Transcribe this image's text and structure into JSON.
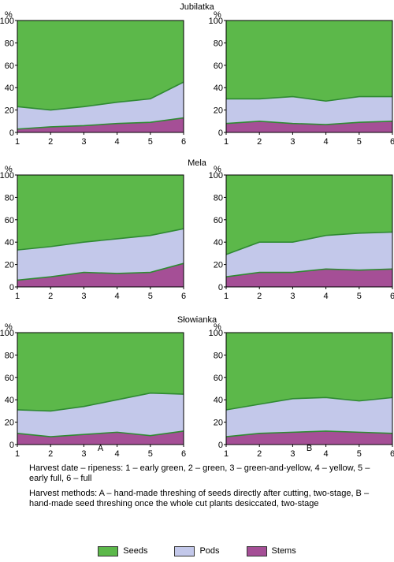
{
  "colors": {
    "seeds": "#5cb84a",
    "pods": "#c3c8ea",
    "stems": "#a54f96",
    "line": "#2f8a32"
  },
  "icons": [
    "legend-swatch"
  ],
  "chart_data": [
    {
      "type": "area",
      "panel": "Jubilatka-A",
      "group_title": "Jubilatka",
      "column_label": "",
      "y_unit": "%",
      "x": [
        1,
        2,
        3,
        4,
        5,
        6
      ],
      "ylim": [
        0,
        100
      ],
      "yticks": [
        0,
        20,
        40,
        60,
        80,
        100
      ],
      "stacked": true,
      "series": [
        {
          "name": "Stems",
          "values": [
            3,
            5,
            6,
            8,
            9,
            13
          ]
        },
        {
          "name": "Pods",
          "values": [
            20,
            15,
            17,
            19,
            21,
            32
          ]
        },
        {
          "name": "Seeds",
          "values": [
            77,
            80,
            77,
            73,
            70,
            55
          ]
        }
      ]
    },
    {
      "type": "area",
      "panel": "Jubilatka-B",
      "group_title": "",
      "column_label": "",
      "y_unit": "%",
      "x": [
        1,
        2,
        3,
        4,
        5,
        6
      ],
      "ylim": [
        0,
        100
      ],
      "yticks": [
        0,
        20,
        40,
        60,
        80,
        100
      ],
      "stacked": true,
      "series": [
        {
          "name": "Stems",
          "values": [
            8,
            10,
            8,
            7,
            9,
            10
          ]
        },
        {
          "name": "Pods",
          "values": [
            22,
            20,
            24,
            21,
            23,
            22
          ]
        },
        {
          "name": "Seeds",
          "values": [
            70,
            70,
            68,
            72,
            68,
            68
          ]
        }
      ]
    },
    {
      "type": "area",
      "panel": "Mela-A",
      "group_title": "Mela",
      "column_label": "",
      "y_unit": "%",
      "x": [
        1,
        2,
        3,
        4,
        5,
        6
      ],
      "ylim": [
        0,
        100
      ],
      "yticks": [
        0,
        20,
        40,
        60,
        80,
        100
      ],
      "stacked": true,
      "series": [
        {
          "name": "Stems",
          "values": [
            6,
            9,
            13,
            12,
            13,
            21
          ]
        },
        {
          "name": "Pods",
          "values": [
            27,
            27,
            27,
            31,
            33,
            31
          ]
        },
        {
          "name": "Seeds",
          "values": [
            67,
            64,
            60,
            57,
            54,
            48
          ]
        }
      ]
    },
    {
      "type": "area",
      "panel": "Mela-B",
      "group_title": "",
      "column_label": "",
      "y_unit": "%",
      "x": [
        1,
        2,
        3,
        4,
        5,
        6
      ],
      "ylim": [
        0,
        100
      ],
      "yticks": [
        0,
        20,
        40,
        60,
        80,
        100
      ],
      "stacked": true,
      "series": [
        {
          "name": "Stems",
          "values": [
            9,
            13,
            13,
            16,
            15,
            16
          ]
        },
        {
          "name": "Pods",
          "values": [
            20,
            27,
            27,
            30,
            33,
            33
          ]
        },
        {
          "name": "Seeds",
          "values": [
            71,
            60,
            60,
            54,
            52,
            51
          ]
        }
      ]
    },
    {
      "type": "area",
      "panel": "Slowianka-A",
      "group_title": "Słowianka",
      "column_label": "A",
      "y_unit": "%",
      "x": [
        1,
        2,
        3,
        4,
        5,
        6
      ],
      "ylim": [
        0,
        100
      ],
      "yticks": [
        0,
        20,
        40,
        60,
        80,
        100
      ],
      "stacked": true,
      "series": [
        {
          "name": "Stems",
          "values": [
            10,
            7,
            9,
            11,
            8,
            12
          ]
        },
        {
          "name": "Pods",
          "values": [
            21,
            23,
            25,
            29,
            38,
            33
          ]
        },
        {
          "name": "Seeds",
          "values": [
            69,
            70,
            66,
            60,
            54,
            55
          ]
        }
      ]
    },
    {
      "type": "area",
      "panel": "Slowianka-B",
      "group_title": "",
      "column_label": "B",
      "y_unit": "%",
      "x": [
        1,
        2,
        3,
        4,
        5,
        6
      ],
      "ylim": [
        0,
        100
      ],
      "yticks": [
        0,
        20,
        40,
        60,
        80,
        100
      ],
      "stacked": true,
      "series": [
        {
          "name": "Stems",
          "values": [
            7,
            10,
            11,
            12,
            11,
            10
          ]
        },
        {
          "name": "Pods",
          "values": [
            24,
            26,
            30,
            30,
            28,
            32
          ]
        },
        {
          "name": "Seeds",
          "values": [
            69,
            64,
            59,
            58,
            61,
            58
          ]
        }
      ]
    }
  ],
  "notes": [
    "Harvest date – ripeness: 1 – early green, 2 – green, 3 – green-and-yellow, 4 – yellow, 5 – early full, 6 – full",
    "Harvest methods: A – hand-made threshing of seeds directly after cutting, two-stage, B – hand-made seed threshing once the whole cut plants desiccated, two-stage"
  ],
  "legend": [
    {
      "label": "Seeds",
      "color": "#5cb84a"
    },
    {
      "label": "Pods",
      "color": "#c3c8ea"
    },
    {
      "label": "Stems",
      "color": "#a54f96"
    }
  ]
}
